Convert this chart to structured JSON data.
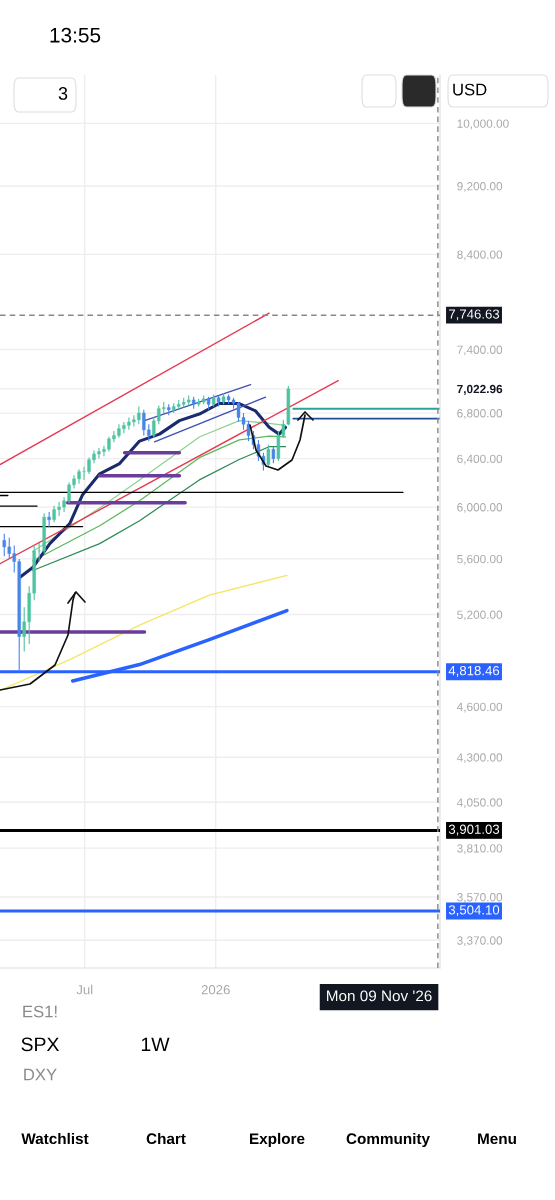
{
  "chart_data": {
    "type": "candlestick",
    "x": [
      "2025-03-10",
      "2025-03-17",
      "2025-03-24",
      "2025-03-31",
      "2025-04-07",
      "2025-04-14",
      "2025-04-21",
      "2025-04-28",
      "2025-05-05",
      "2025-05-12",
      "2025-05-19",
      "2025-05-26",
      "2025-06-02",
      "2025-06-09",
      "2025-06-16",
      "2025-06-23",
      "2025-06-30",
      "2025-07-07",
      "2025-07-14",
      "2025-07-21",
      "2025-07-28",
      "2025-08-04",
      "2025-08-11",
      "2025-08-18",
      "2025-08-25",
      "2025-09-01",
      "2025-09-08",
      "2025-09-15",
      "2025-09-22",
      "2025-09-29",
      "2025-10-06",
      "2025-10-13",
      "2025-10-20",
      "2025-10-27",
      "2025-11-03",
      "2025-11-10",
      "2025-11-17",
      "2025-11-24",
      "2025-12-01",
      "2025-12-08",
      "2025-12-15",
      "2025-12-22",
      "2025-12-29",
      "2026-01-05",
      "2026-01-12",
      "2026-01-19",
      "2026-01-26",
      "2026-02-02",
      "2026-02-09",
      "2026-02-16",
      "2026-02-23",
      "2026-03-02",
      "2026-03-09",
      "2026-03-16",
      "2026-03-23",
      "2026-03-30",
      "2026-04-06",
      "2026-04-13"
    ],
    "ohlc": [
      [
        5740,
        5790,
        5620,
        5690
      ],
      [
        5690,
        5760,
        5600,
        5640
      ],
      [
        5640,
        5700,
        5500,
        5580
      ],
      [
        5580,
        5600,
        4830,
        5050
      ],
      [
        5050,
        5250,
        4950,
        5150
      ],
      [
        5150,
        5400,
        5000,
        5350
      ],
      [
        5350,
        5700,
        5300,
        5660
      ],
      [
        5660,
        5720,
        5580,
        5660
      ],
      [
        5660,
        5950,
        5640,
        5920
      ],
      [
        5920,
        5960,
        5840,
        5900
      ],
      [
        5900,
        6010,
        5880,
        5980
      ],
      [
        5980,
        6040,
        5930,
        6000
      ],
      [
        6000,
        6080,
        5960,
        6050
      ],
      [
        6050,
        6200,
        6030,
        6180
      ],
      [
        6180,
        6260,
        6150,
        6230
      ],
      [
        6230,
        6310,
        6190,
        6290
      ],
      [
        6290,
        6330,
        6220,
        6290
      ],
      [
        6290,
        6410,
        6270,
        6390
      ],
      [
        6390,
        6470,
        6360,
        6440
      ],
      [
        6440,
        6490,
        6400,
        6460
      ],
      [
        6460,
        6510,
        6420,
        6480
      ],
      [
        6480,
        6590,
        6460,
        6570
      ],
      [
        6570,
        6640,
        6540,
        6600
      ],
      [
        6600,
        6700,
        6580,
        6660
      ],
      [
        6660,
        6720,
        6620,
        6690
      ],
      [
        6690,
        6760,
        6650,
        6720
      ],
      [
        6720,
        6780,
        6680,
        6740
      ],
      [
        6740,
        6860,
        6700,
        6800
      ],
      [
        6800,
        6830,
        6600,
        6650
      ],
      [
        6650,
        6700,
        6550,
        6600
      ],
      [
        6600,
        6760,
        6580,
        6730
      ],
      [
        6730,
        6870,
        6700,
        6840
      ],
      [
        6840,
        6900,
        6800,
        6850
      ],
      [
        6850,
        6880,
        6780,
        6830
      ],
      [
        6830,
        6890,
        6800,
        6860
      ],
      [
        6860,
        6920,
        6830,
        6880
      ],
      [
        6880,
        6940,
        6850,
        6900
      ],
      [
        6900,
        6960,
        6870,
        6920
      ],
      [
        6920,
        6950,
        6840,
        6880
      ],
      [
        6880,
        6930,
        6860,
        6900
      ],
      [
        6900,
        6960,
        6880,
        6930
      ],
      [
        6930,
        6950,
        6830,
        6880
      ],
      [
        6880,
        6970,
        6860,
        6940
      ],
      [
        6940,
        6960,
        6860,
        6900
      ],
      [
        6900,
        6980,
        6880,
        6950
      ],
      [
        6950,
        6970,
        6880,
        6920
      ],
      [
        6920,
        6940,
        6840,
        6890
      ],
      [
        6890,
        6900,
        6720,
        6760
      ],
      [
        6760,
        6800,
        6650,
        6700
      ],
      [
        6700,
        6730,
        6550,
        6600
      ],
      [
        6600,
        6640,
        6480,
        6520
      ],
      [
        6520,
        6560,
        6380,
        6420
      ],
      [
        6420,
        6450,
        6300,
        6350
      ],
      [
        6350,
        6520,
        6330,
        6480
      ],
      [
        6480,
        6500,
        6360,
        6400
      ],
      [
        6400,
        6640,
        6380,
        6600
      ],
      [
        6600,
        6740,
        6580,
        6700
      ],
      [
        6700,
        7050,
        6690,
        7022.96
      ]
    ],
    "colors": [
      "#4a86e8",
      "#4a86e8",
      "#4a86e8",
      "#4a86e8",
      "#4fc3a1",
      "#4fc3a1",
      "#4fc3a1",
      "#4fc3a1",
      "#4fc3a1",
      "#4a86e8",
      "#4fc3a1",
      "#4fc3a1",
      "#4fc3a1",
      "#4fc3a1",
      "#4fc3a1",
      "#4fc3a1",
      "#4fc3a1",
      "#4fc3a1",
      "#4fc3a1",
      "#4fc3a1",
      "#4fc3a1",
      "#4fc3a1",
      "#4fc3a1",
      "#4fc3a1",
      "#4fc3a1",
      "#4fc3a1",
      "#4fc3a1",
      "#4fc3a1",
      "#4a86e8",
      "#4a86e8",
      "#4fc3a1",
      "#4fc3a1",
      "#4fc3a1",
      "#4a86e8",
      "#4fc3a1",
      "#4fc3a1",
      "#4fc3a1",
      "#4fc3a1",
      "#4a86e8",
      "#4fc3a1",
      "#4fc3a1",
      "#4a86e8",
      "#4fc3a1",
      "#4a86e8",
      "#4fc3a1",
      "#4a86e8",
      "#4a86e8",
      "#4a86e8",
      "#4a86e8",
      "#4a86e8",
      "#4a86e8",
      "#4a86e8",
      "#4a86e8",
      "#4fc3a1",
      "#4a86e8",
      "#4fc3a1",
      "#4fc3a1",
      "#4fc3a1"
    ],
    "series": [
      {
        "type": "line",
        "color": "#f5e663",
        "x": [
          "2025-03-04",
          "2025-06-10",
          "2025-09-16",
          "2025-12-23",
          "2026-04-11"
        ],
        "values": [
          4700,
          4897,
          5127,
          5336,
          5478
        ]
      },
      {
        "type": "line",
        "color": "#2962ff",
        "x": [
          "2025-06-14",
          "2025-09-16",
          "2025-12-23",
          "2026-04-11"
        ],
        "values": [
          4760,
          4865,
          5030,
          5228
        ]
      },
      {
        "type": "line",
        "color": "#8fd18f",
        "x": [
          "2025-04-19",
          "2025-07-22",
          "2025-09-16",
          "2025-12-09",
          "2026-02-03",
          "2026-03-17",
          "2026-04-09"
        ],
        "values": [
          5655,
          5993,
          6221,
          6587,
          6732,
          6707,
          6690
        ]
      },
      {
        "type": "line",
        "color": "#5cb85c",
        "x": [
          "2025-04-19",
          "2025-07-22",
          "2025-09-16",
          "2025-12-09",
          "2026-02-03",
          "2026-03-17",
          "2026-04-09"
        ],
        "values": [
          5586,
          5853,
          6051,
          6408,
          6561,
          6595,
          6587
        ]
      },
      {
        "type": "line",
        "color": "#2e8b57",
        "x": [
          "2025-04-19",
          "2025-07-22",
          "2025-09-16",
          "2025-12-09",
          "2026-02-03",
          "2026-03-17",
          "2026-04-09"
        ],
        "values": [
          5514,
          5715,
          5892,
          6221,
          6392,
          6502,
          6502
        ]
      },
      {
        "type": "line",
        "color": "#1a2a6c",
        "x": [
          "2025-04-01",
          "2025-04-19",
          "2025-05-13",
          "2025-06-10",
          "2025-06-28",
          "2025-07-22",
          "2025-08-19",
          "2025-09-16",
          "2025-10-14",
          "2025-11-11",
          "2025-12-09",
          "2026-01-06",
          "2026-02-03",
          "2026-02-26",
          "2026-03-17",
          "2026-03-31",
          "2026-04-09"
        ],
        "values": [
          5465,
          5536,
          5715,
          5870,
          6100,
          6272,
          6358,
          6551,
          6612,
          6732,
          6791,
          6887,
          6887,
          6819,
          6672,
          6612,
          6672
        ]
      },
      {
        "type": "line",
        "color": "#e53950",
        "x": [
          "2025-03-04",
          "2026-03-17"
        ],
        "values": [
          6349,
          7768
        ]
      },
      {
        "type": "line",
        "color": "#e53950",
        "x": [
          "2025-03-04",
          "2026-06-22"
        ],
        "values": [
          5564,
          7100
        ]
      },
      {
        "type": "line",
        "color": "#3f51b5",
        "x": [
          "2025-09-23",
          "2026-02-19"
        ],
        "values": [
          6732,
          7062
        ]
      },
      {
        "type": "line",
        "color": "#3f51b5",
        "x": [
          "2025-10-07",
          "2026-03-12"
        ],
        "values": [
          6545,
          6945
        ]
      },
      {
        "type": "line",
        "color": "#000000",
        "x": [
          "2025-03-04",
          "2026-09-21"
        ],
        "values": [
          6119,
          6119
        ]
      },
      {
        "type": "line",
        "color": "#000000",
        "x": [
          "2025-03-04",
          "2025-03-15"
        ],
        "values": [
          6093,
          6093
        ]
      },
      {
        "type": "line",
        "color": "#000000",
        "x": [
          "2025-03-04",
          "2025-04-25"
        ],
        "values": [
          6008,
          6008
        ]
      },
      {
        "type": "line",
        "color": "#000000",
        "x": [
          "2025-03-04",
          "2025-06-28"
        ],
        "values": [
          5846,
          5846
        ]
      },
      {
        "type": "line",
        "color": "#6a3d9a",
        "x": [
          "2025-08-26",
          "2025-11-11"
        ],
        "values": [
          6451,
          6451
        ]
      },
      {
        "type": "line",
        "color": "#6a3d9a",
        "x": [
          "2025-07-22",
          "2025-11-11"
        ],
        "values": [
          6256,
          6256
        ]
      },
      {
        "type": "line",
        "color": "#6a3d9a",
        "x": [
          "2025-06-07",
          "2025-11-19"
        ],
        "values": [
          6034,
          6034
        ]
      },
      {
        "type": "line",
        "color": "#6a3d9a",
        "x": [
          "2025-03-04",
          "2025-09-23"
        ],
        "values": [
          5081,
          5081
        ]
      },
      {
        "type": "line",
        "color": "#26a69a",
        "x": [
          "2026-04-20",
          "2026-11-12"
        ],
        "values": [
          6839,
          6839
        ]
      },
      {
        "type": "line",
        "color": "#1f4e99",
        "x": [
          "2026-04-20",
          "2026-11-12"
        ],
        "values": [
          6750,
          6750
        ]
      }
    ],
    "xlim": [
      "2025-03-04",
      "2026-11-12"
    ],
    "xticks": [
      {
        "value": "2025-07-01",
        "label": "Jul"
      },
      {
        "value": "2026-01-01",
        "label": "2026"
      }
    ],
    "ylim": [
      3248,
      10666
    ],
    "log": true,
    "yticks": [
      {
        "value": 3370,
        "label": "3,370.00"
      },
      {
        "value": 3570,
        "label": "3,570.00"
      },
      {
        "value": 3810,
        "label": "3,810.00"
      },
      {
        "value": 4050,
        "label": "4,050.00"
      },
      {
        "value": 4300,
        "label": "4,300.00"
      },
      {
        "value": 4600,
        "label": "4,600.00"
      },
      {
        "value": 5200,
        "label": "5,200.00"
      },
      {
        "value": 5600,
        "label": "5,600.00"
      },
      {
        "value": 6000,
        "label": "6,000.00"
      },
      {
        "value": 6400,
        "label": "6,400.00"
      },
      {
        "value": 6800,
        "label": "6,800.00"
      },
      {
        "value": 7022.96,
        "label": "7,022.96"
      },
      {
        "value": 7400,
        "label": "7,400.00"
      },
      {
        "value": 8400,
        "label": "8,400.00"
      },
      {
        "value": 9200,
        "label": "9,200.00"
      },
      {
        "value": 10000,
        "label": "10,000.00"
      }
    ],
    "grid": true,
    "ref_lines": [
      {
        "axis": "y",
        "value": 7746.63,
        "label": "7,746.63",
        "color": "#888888",
        "line_style": "dashed"
      },
      {
        "axis": "y",
        "value": 4818.46,
        "label": "4,818.46",
        "color": "#2962ff",
        "line_style": "solid"
      },
      {
        "axis": "y",
        "value": 3901.03,
        "label": "3,901.03",
        "color": "#000000",
        "line_style": "solid"
      },
      {
        "axis": "y",
        "value": 3504.1,
        "label": "3,504.10",
        "color": "#2962ff",
        "line_style": "solid"
      },
      {
        "axis": "x",
        "value": "2026-11-09",
        "label": "Mon 09 Nov '26",
        "color": "#888888",
        "line_style": "dashed"
      }
    ],
    "annotations": [
      "13:55",
      "3",
      "USD",
      "ES1!",
      "SPX",
      "1W",
      "DXY",
      "Watchlist",
      "Chart",
      "Explore",
      "Community",
      "Menu"
    ]
  }
}
